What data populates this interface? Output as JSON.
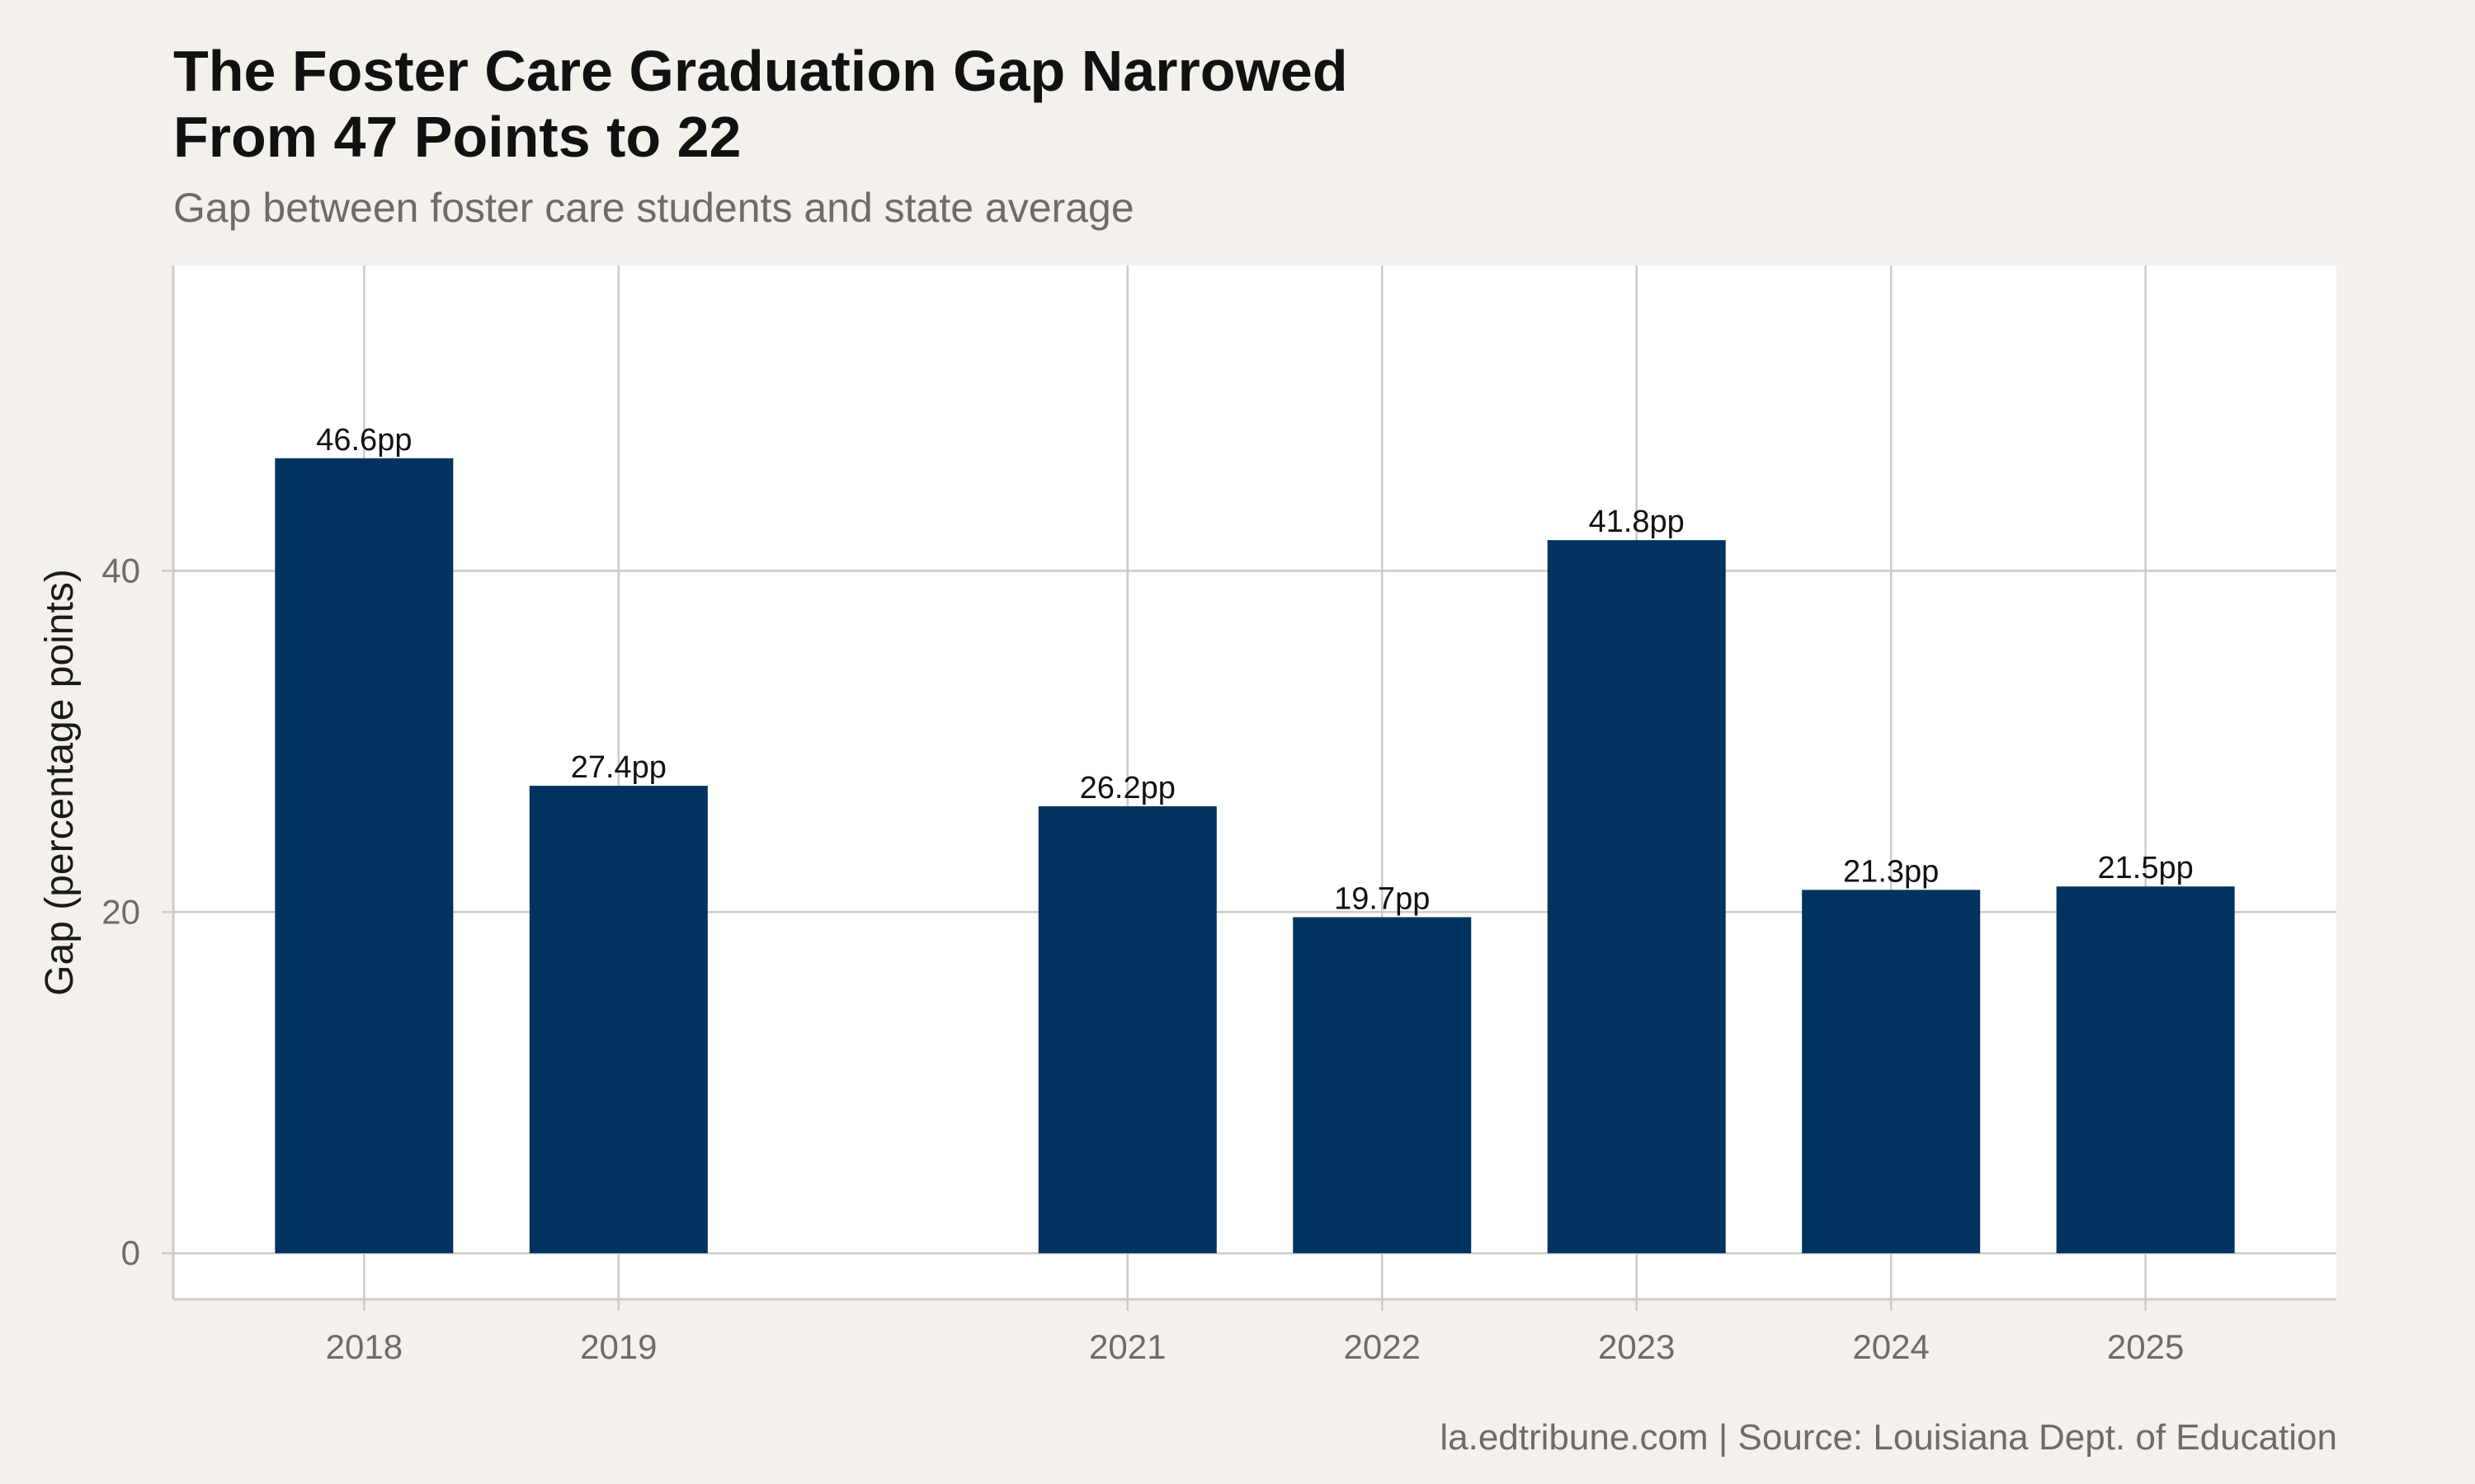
{
  "chart_data": {
    "type": "bar",
    "title": [
      "The Foster Care Graduation Gap Narrowed",
      "From 47 Points to 22"
    ],
    "subtitle": "Gap between foster care students and state average",
    "xlabel": "",
    "ylabel": "Gap (percentage points)",
    "x": [
      2018,
      2019,
      2021,
      2022,
      2023,
      2024,
      2025
    ],
    "x_tick_labels": [
      "2018",
      "2019",
      "2021",
      "2022",
      "2023",
      "2024",
      "2025"
    ],
    "values": [
      46.6,
      27.4,
      26.2,
      19.7,
      41.8,
      21.3,
      21.5
    ],
    "data_labels": [
      "46.6pp",
      "27.4pp",
      "26.2pp",
      "19.7pp",
      "41.8pp",
      "21.3pp",
      "21.5pp"
    ],
    "xlim": [
      2017.25,
      2025.75
    ],
    "ylim": [
      -2.7,
      57.9
    ],
    "y_ticks": [
      0,
      20,
      40
    ],
    "y_tick_labels": [
      "0",
      "20",
      "40"
    ],
    "grid": true,
    "bar_color": "#00335f",
    "caption": "la.edtribune.com | Source: Louisiana Dept. of Education"
  },
  "colors": {
    "background": "#f4f1ec",
    "panel": "#ffffff",
    "grid": "#cfcbc4",
    "bar": "#00335f",
    "muted_text": "#6f6b66",
    "title_text": "#111111"
  }
}
